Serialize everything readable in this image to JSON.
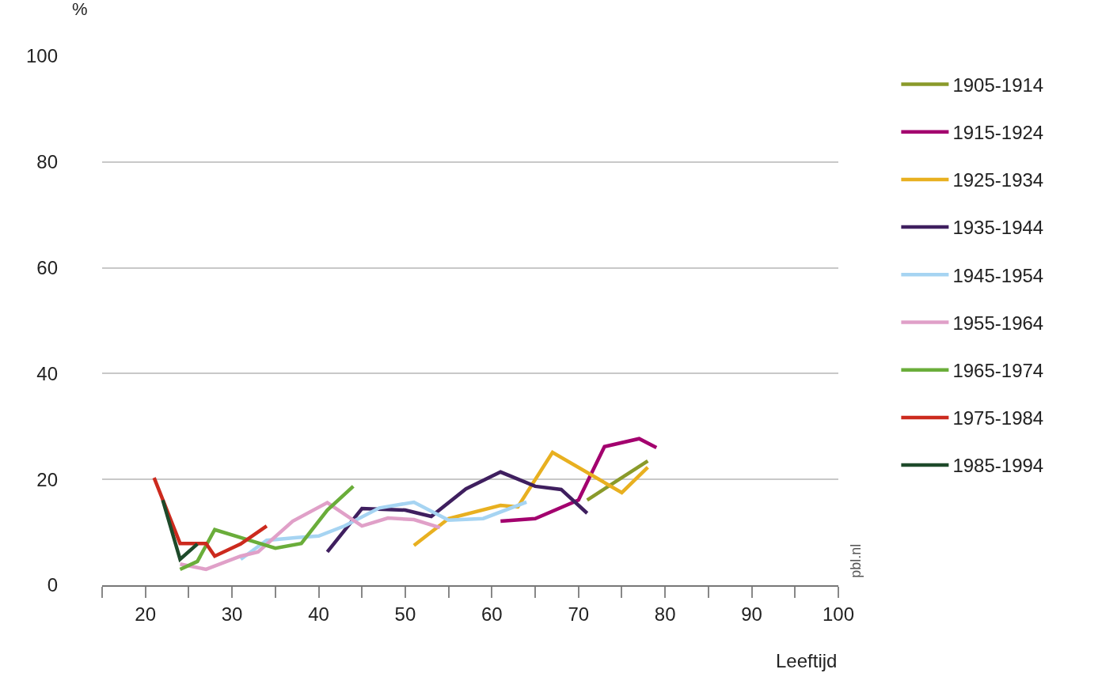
{
  "chart_data": {
    "type": "line",
    "ylabel": "%",
    "xlabel": "Leeftijd",
    "xlim": [
      15,
      100
    ],
    "xticks": [
      {
        "value": 15,
        "label": null
      },
      20,
      {
        "value": 25,
        "label": null
      },
      30,
      {
        "value": 35,
        "label": null
      },
      40,
      {
        "value": 45,
        "label": null
      },
      50,
      {
        "value": 55,
        "label": null
      },
      60,
      {
        "value": 65,
        "label": null
      },
      70,
      {
        "value": 75,
        "label": null
      },
      80,
      {
        "value": 85,
        "label": null
      },
      90,
      {
        "value": 95,
        "label": null
      },
      100
    ],
    "ylim": [
      0,
      100
    ],
    "yticks": [
      0,
      20,
      40,
      60,
      80,
      100
    ],
    "grid": "y",
    "legend": "right",
    "marker": "none",
    "line_style": "solid",
    "annotations": [
      "pbl.nl"
    ],
    "series": [
      {
        "name": "1905-1914",
        "color": "#8a9a2a",
        "x": [
          71,
          78
        ],
        "values": [
          16.1,
          23.5
        ]
      },
      {
        "name": "1915-1924",
        "color": "#a3006e",
        "x": [
          61,
          65,
          70,
          73,
          77,
          79
        ],
        "values": [
          12.1,
          12.6,
          16.1,
          26.2,
          27.7,
          26.0
        ]
      },
      {
        "name": "1925-1934",
        "color": "#e8b020",
        "x": [
          51,
          55,
          61,
          63,
          67,
          75,
          78
        ],
        "values": [
          7.5,
          12.6,
          15.1,
          14.8,
          25.1,
          17.5,
          22.3
        ]
      },
      {
        "name": "1935-1944",
        "color": "#3f1f5f",
        "x": [
          41,
          45,
          50,
          53,
          57,
          61,
          65,
          68,
          71
        ],
        "values": [
          6.3,
          14.5,
          14.2,
          13.0,
          18.2,
          21.4,
          18.7,
          18.1,
          13.6
        ]
      },
      {
        "name": "1945-1954",
        "color": "#a6d4f2",
        "x": [
          31,
          34,
          37.5,
          40,
          43,
          47,
          51,
          55,
          59,
          64
        ],
        "values": [
          4.9,
          8.5,
          9.0,
          9.3,
          11.2,
          14.6,
          15.7,
          12.3,
          12.6,
          15.7
        ]
      },
      {
        "name": "1955-1964",
        "color": "#e0a0c8",
        "x": [
          24,
          27,
          31,
          33,
          37,
          41,
          45,
          48,
          51,
          54
        ],
        "values": [
          4.0,
          3.0,
          5.5,
          6.3,
          12.1,
          15.6,
          11.2,
          12.7,
          12.4,
          10.9
        ]
      },
      {
        "name": "1965-1974",
        "color": "#6aad3a",
        "x": [
          24,
          26,
          28,
          32,
          35,
          38,
          41,
          44
        ],
        "values": [
          3.0,
          4.5,
          10.5,
          8.5,
          7.0,
          7.9,
          14.2,
          18.7
        ]
      },
      {
        "name": "1975-1984",
        "color": "#cc2a1e",
        "x": [
          21,
          24,
          27,
          28,
          31,
          34
        ],
        "values": [
          20.3,
          7.9,
          7.9,
          5.5,
          7.8,
          11.2
        ]
      },
      {
        "name": "1985-1994",
        "color": "#1e4a2a",
        "x": [
          22,
          24,
          26
        ],
        "values": [
          16.1,
          4.9,
          7.8
        ]
      }
    ]
  }
}
